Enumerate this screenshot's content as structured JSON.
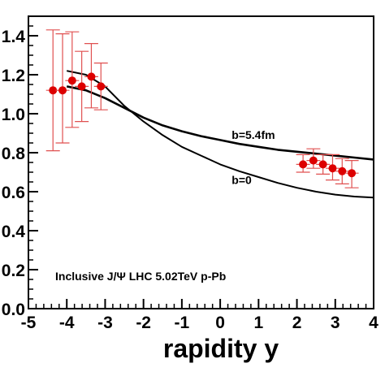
{
  "chart_data": {
    "type": "scatter",
    "xlabel": "rapidity y",
    "ylabel": "",
    "xlim": [
      -5,
      4
    ],
    "ylim": [
      0.0,
      1.5
    ],
    "x_ticks": [
      "-5",
      "-4",
      "-3",
      "-2",
      "-1",
      "0",
      "1",
      "2",
      "3",
      "4"
    ],
    "y_ticks": [
      {
        "value": 0.0,
        "label": "0.0"
      },
      {
        "value": 0.2,
        "label": "0.2"
      },
      {
        "value": 0.4,
        "label": "0.4"
      },
      {
        "value": 0.6,
        "label": "0.6"
      },
      {
        "value": 0.8,
        "label": "0.8"
      },
      {
        "value": 1.0,
        "label": "1.0"
      },
      {
        "value": 1.2,
        "label": "1.2"
      },
      {
        "value": 1.4,
        "label": "1.4"
      }
    ],
    "annotation": "Inclusive J/Ψ  LHC 5.02TeV p-Pb",
    "points": {
      "color": "#dd0000",
      "error_color": "#e05050",
      "data": [
        {
          "x": -4.36,
          "y": 1.12,
          "xerr": 0.18,
          "ylo": 0.81,
          "yhi": 1.43
        },
        {
          "x": -4.11,
          "y": 1.12,
          "xerr": 0.18,
          "ylo": 0.85,
          "yhi": 1.41
        },
        {
          "x": -3.86,
          "y": 1.17,
          "xerr": 0.18,
          "ylo": 0.93,
          "yhi": 1.42
        },
        {
          "x": -3.61,
          "y": 1.14,
          "xerr": 0.18,
          "ylo": 0.96,
          "yhi": 1.32
        },
        {
          "x": -3.36,
          "y": 1.19,
          "xerr": 0.18,
          "ylo": 1.03,
          "yhi": 1.36
        },
        {
          "x": -3.11,
          "y": 1.14,
          "xerr": 0.18,
          "ylo": 1.02,
          "yhi": 1.26
        },
        {
          "x": 2.16,
          "y": 0.74,
          "xerr": 0.18,
          "ylo": 0.7,
          "yhi": 0.79
        },
        {
          "x": 2.43,
          "y": 0.76,
          "xerr": 0.18,
          "ylo": 0.72,
          "yhi": 0.82
        },
        {
          "x": 2.68,
          "y": 0.74,
          "xerr": 0.18,
          "ylo": 0.69,
          "yhi": 0.79
        },
        {
          "x": 2.93,
          "y": 0.72,
          "xerr": 0.18,
          "ylo": 0.66,
          "yhi": 0.79
        },
        {
          "x": 3.18,
          "y": 0.705,
          "xerr": 0.18,
          "ylo": 0.64,
          "yhi": 0.77
        },
        {
          "x": 3.43,
          "y": 0.695,
          "xerr": 0.18,
          "ylo": 0.62,
          "yhi": 0.76
        }
      ]
    },
    "curves": [
      {
        "name": "b=5.4fm",
        "label_at": [
          0.3,
          0.87
        ],
        "x": [
          -4.0,
          -3.5,
          -3.0,
          -2.5,
          -2.0,
          -1.5,
          -1.0,
          -0.5,
          0.0,
          0.5,
          1.0,
          1.5,
          2.0,
          2.5,
          3.0,
          3.5,
          4.0
        ],
        "y": [
          1.14,
          1.12,
          1.08,
          1.03,
          0.98,
          0.94,
          0.91,
          0.885,
          0.865,
          0.845,
          0.83,
          0.815,
          0.805,
          0.795,
          0.785,
          0.775,
          0.765
        ]
      },
      {
        "name": "b=0",
        "label_at": [
          0.3,
          0.64
        ],
        "x": [
          -4.0,
          -3.5,
          -3.0,
          -2.5,
          -2.0,
          -1.5,
          -1.0,
          -0.5,
          0.0,
          0.5,
          1.0,
          1.5,
          2.0,
          2.5,
          3.0,
          3.5,
          4.0
        ],
        "y": [
          1.22,
          1.2,
          1.14,
          1.04,
          0.96,
          0.89,
          0.83,
          0.785,
          0.74,
          0.705,
          0.675,
          0.645,
          0.62,
          0.6,
          0.585,
          0.575,
          0.57
        ]
      }
    ]
  }
}
